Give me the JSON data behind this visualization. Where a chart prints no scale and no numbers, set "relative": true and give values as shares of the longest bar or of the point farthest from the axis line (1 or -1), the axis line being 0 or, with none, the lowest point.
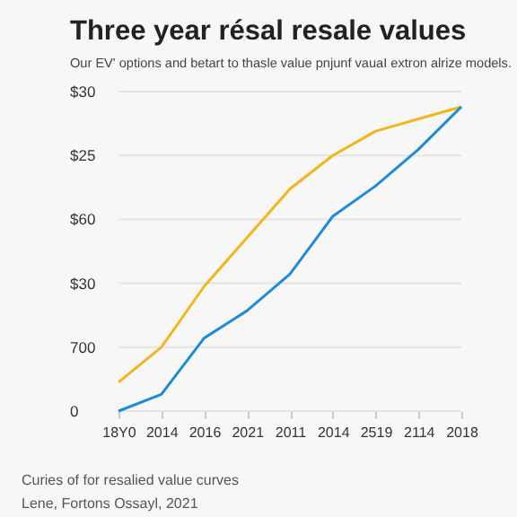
{
  "chart_data": {
    "type": "line",
    "title": "Three year résal resale values",
    "subtitle": "Our EV' options and betart to thasle value pnjunf vauaI extron alrize models.",
    "categories": [
      "18Y0",
      "2014",
      "2016",
      "2021",
      "2011",
      "2014",
      "2519",
      "2114",
      "2018"
    ],
    "relative": true,
    "series": [
      {
        "color": "#f2b619",
        "values": [
          0.095,
          0.21,
          0.41,
          0.57,
          0.73,
          0.84,
          0.92,
          0.96,
          1
        ]
      },
      {
        "color": "#1f8ad6",
        "values": [
          0,
          0.055,
          0.24,
          0.33,
          0.45,
          0.64,
          0.74,
          0.86,
          1
        ]
      }
    ],
    "grid": "y",
    "legend": false,
    "marker": "none",
    "line_style": "solid",
    "annotations": [
      "0",
      "700",
      "$30",
      "$60",
      "$25",
      "$30",
      "Curies of for resalied value curves",
      "Lene, Fortons Ossayl, 2021"
    ]
  }
}
